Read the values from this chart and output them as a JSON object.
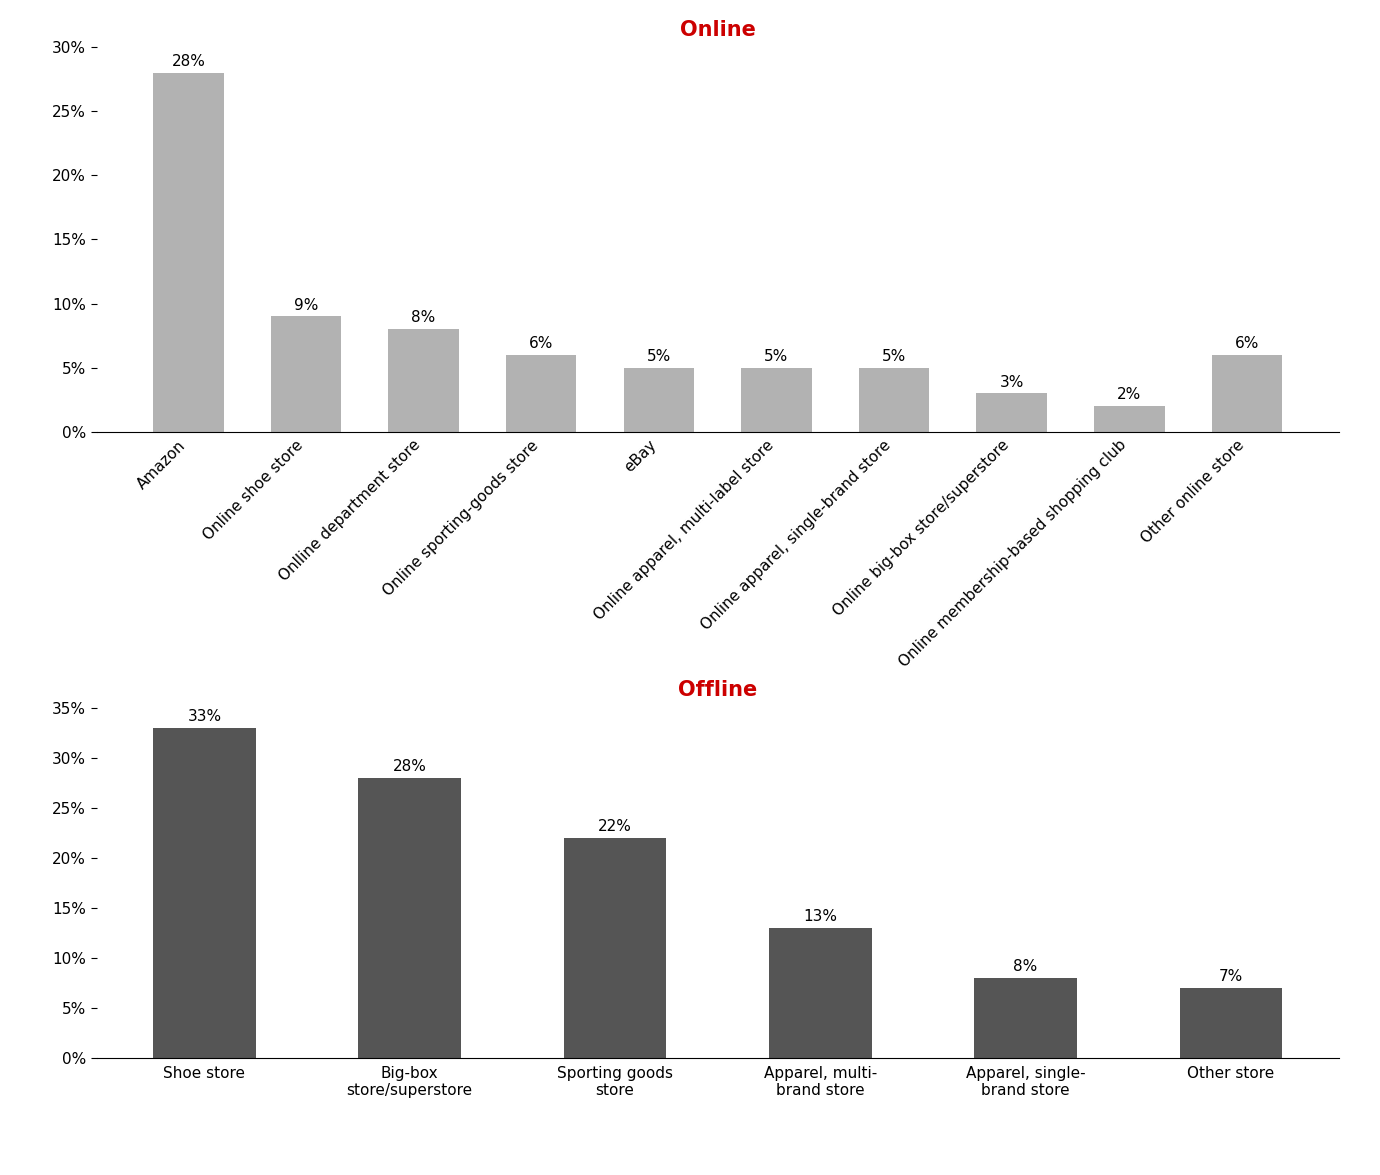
{
  "online": {
    "categories": [
      "Amazon",
      "Online shoe store",
      "Onlline department store",
      "Online sporting-goods store",
      "eBay",
      "Online apparel, multi-label store",
      "Online apparel, single-brand store",
      "Online big-box store/superstore",
      "Online membership-based shopping club",
      "Other online store"
    ],
    "values": [
      28,
      9,
      8,
      6,
      5,
      5,
      5,
      3,
      2,
      6
    ],
    "bar_color": "#b2b2b2",
    "title": "Online",
    "title_color": "#cc0000",
    "ylim": [
      0,
      30
    ],
    "yticks": [
      0,
      5,
      10,
      15,
      20,
      25,
      30
    ],
    "ytick_labels": [
      "0%",
      "5%",
      "10%",
      "15%",
      "20%",
      "25%",
      "30%"
    ]
  },
  "offline": {
    "categories": [
      "Shoe store",
      "Big-box\nstore/superstore",
      "Sporting goods\nstore",
      "Apparel, multi-\nbrand store",
      "Apparel, single-\nbrand store",
      "Other store"
    ],
    "values": [
      33,
      28,
      22,
      13,
      8,
      7
    ],
    "bar_color": "#555555",
    "title": "Offline",
    "title_color": "#cc0000",
    "ylim": [
      0,
      35
    ],
    "yticks": [
      0,
      5,
      10,
      15,
      20,
      25,
      30,
      35
    ],
    "ytick_labels": [
      "0%",
      "5%",
      "10%",
      "15%",
      "20%",
      "25%",
      "30%",
      "35%"
    ]
  },
  "background_color": "#ffffff",
  "label_fontsize": 11,
  "title_fontsize": 15,
  "tick_fontsize": 11,
  "bar_label_fontsize": 11
}
